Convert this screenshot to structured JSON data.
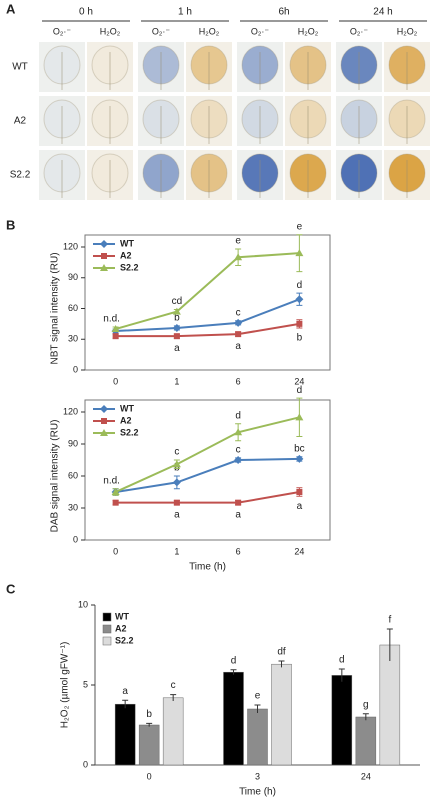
{
  "panel_labels": [
    "A",
    "B",
    "C"
  ],
  "image_panel": {
    "time_headers": [
      "0 h",
      "1 h",
      "6h",
      "24 h"
    ],
    "stains": [
      "O₂·⁻",
      "H₂O₂"
    ],
    "rows": [
      "WT",
      "A2",
      "S2.2"
    ]
  },
  "chart_data": [
    {
      "type": "line",
      "ylabel": "NBT signal intensity (RU)",
      "categories": [
        "0",
        "1",
        "6",
        "24"
      ],
      "ylim": [
        0,
        120
      ],
      "yticks": [
        0,
        30,
        60,
        90,
        120
      ],
      "series": [
        {
          "name": "WT",
          "color": "#4a7ebb",
          "marker": "diamond",
          "values": [
            38,
            41,
            46,
            69
          ],
          "errors": [
            2,
            2,
            2,
            6
          ],
          "letters": [
            null,
            "b",
            "c",
            "d"
          ]
        },
        {
          "name": "A2",
          "color": "#c0504d",
          "marker": "square",
          "values": [
            33,
            33,
            35,
            45
          ],
          "errors": [
            2,
            2,
            2,
            4
          ],
          "letters": [
            null,
            "a",
            "a",
            "b"
          ]
        },
        {
          "name": "S2.2",
          "color": "#9bbb59",
          "marker": "triangle",
          "values": [
            40,
            57,
            110,
            114
          ],
          "errors": [
            2,
            2,
            8,
            18
          ],
          "letters": [
            "n.d.",
            "cd",
            "e",
            "e"
          ]
        }
      ]
    },
    {
      "type": "line",
      "ylabel": "DAB signal intensity (RU)",
      "xlabel": "Time (h)",
      "categories": [
        "0",
        "1",
        "6",
        "24"
      ],
      "ylim": [
        0,
        120
      ],
      "yticks": [
        0,
        30,
        60,
        90,
        120
      ],
      "series": [
        {
          "name": "WT",
          "color": "#4a7ebb",
          "marker": "diamond",
          "values": [
            45,
            54,
            75,
            76
          ],
          "errors": [
            3,
            6,
            2,
            2
          ],
          "letters": [
            null,
            "b",
            "c",
            "bc"
          ]
        },
        {
          "name": "A2",
          "color": "#c0504d",
          "marker": "square",
          "values": [
            35,
            35,
            35,
            45
          ],
          "errors": [
            2,
            2,
            2,
            4
          ],
          "letters": [
            null,
            "a",
            "a",
            "a"
          ]
        },
        {
          "name": "S2.2",
          "color": "#9bbb59",
          "marker": "triangle",
          "values": [
            45,
            71,
            101,
            115
          ],
          "errors": [
            3,
            4,
            8,
            18
          ],
          "letters": [
            "n.d.",
            "c",
            "d",
            "d"
          ]
        }
      ]
    },
    {
      "type": "bar",
      "ylabel": "H₂O₂ (µmol gFW⁻¹)",
      "xlabel": "Time (h)",
      "categories": [
        "0",
        "3",
        "24"
      ],
      "ylim": [
        0,
        10
      ],
      "yticks": [
        0,
        5,
        10
      ],
      "series": [
        {
          "name": "WT",
          "color": "#000000",
          "values": [
            3.8,
            5.8,
            5.6
          ],
          "errors": [
            0.25,
            0.15,
            0.4
          ],
          "letters": [
            "a",
            "d",
            "d"
          ]
        },
        {
          "name": "A2",
          "color": "#8c8c8c",
          "values": [
            2.5,
            3.5,
            3.0
          ],
          "errors": [
            0.1,
            0.25,
            0.2
          ],
          "letters": [
            "b",
            "e",
            "g"
          ]
        },
        {
          "name": "S2.2",
          "color": "#dcdcdc",
          "values": [
            4.2,
            6.3,
            7.5
          ],
          "errors": [
            0.2,
            0.2,
            1.0
          ],
          "letters": [
            "c",
            "df",
            "f"
          ]
        }
      ]
    }
  ]
}
